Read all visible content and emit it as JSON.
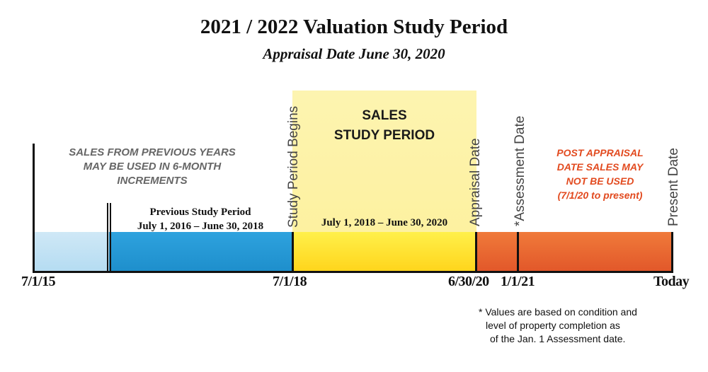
{
  "title": "2021 / 2022 Valuation Study Period",
  "subtitle": "Appraisal Date June 30, 2020",
  "sales_study_period": [
    "SALES",
    "STUDY PERIOD"
  ],
  "previous_years_note": [
    "SALES FROM PREVIOUS YEARS",
    "MAY BE USED IN 6-MONTH",
    "INCREMENTS"
  ],
  "previous_study_period": {
    "label": "Previous Study Period",
    "range": "July 1, 2016 – June 30, 2018"
  },
  "study_period_range": "July 1, 2018 – June 30, 2020",
  "post_appraisal_note": [
    "POST APPRAISAL",
    "DATE SALES MAY",
    "NOT BE USED",
    "(7/1/20 to present)"
  ],
  "milestones": {
    "study_begins": "Study Period Begins",
    "appraisal": "Appraisal Date",
    "assessment": "*Assessment Date",
    "present": "Present Date"
  },
  "ticks": {
    "start": "7/1/15",
    "study_begin": "7/1/18",
    "appraisal": "6/30/20",
    "assessment": "1/1/21",
    "today": "Today"
  },
  "footnote": [
    "* Values are based on condition and",
    "level of property completion as",
    "of the Jan. 1 Assessment date."
  ],
  "colors": {
    "early_sales": "#c4e2f4",
    "previous_period": "#2498d6",
    "study_period": "#ffe02a",
    "study_period_highlight": "#fdf2a8",
    "post_appraisal": "#e8652f",
    "post_appraisal_text": "#e24a1f"
  }
}
